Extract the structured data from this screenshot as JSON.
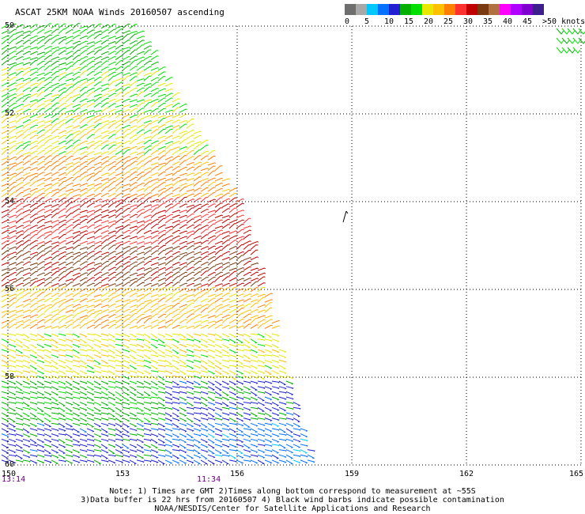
{
  "title": "ASCAT 25KM NOAA Winds 20160507 ascending",
  "legend": {
    "colors": [
      "#6e6e6e",
      "#a8a8a8",
      "#00c8ff",
      "#0070ff",
      "#2020d0",
      "#00b000",
      "#00e000",
      "#e8e800",
      "#ffc000",
      "#ff8000",
      "#ff3030",
      "#c00000",
      "#7a3a10",
      "#b07040",
      "#ff00ff",
      "#b000ff",
      "#8000d0",
      "#3c1e8c"
    ],
    "labels": [
      "0",
      "5",
      "10",
      "15",
      "20",
      "25",
      "30",
      "35",
      "40",
      "45",
      ">50 knots"
    ]
  },
  "lat_labels": [
    "50",
    "52",
    "54",
    "56",
    "58",
    "60"
  ],
  "lon_labels": [
    "150",
    "153",
    "156",
    "159",
    "162",
    "165"
  ],
  "time_labels": [
    "13:14",
    "11:34"
  ],
  "notes": [
    "Note: 1) Times are GMT 2)Times along bottom correspond to measurement at ~55S",
    "3)Data buffer is 22 hrs from 20160507 4) Black wind barbs indicate possible contamination",
    "NOAA/NESDIS/Center for Satellite Applications and Research"
  ],
  "map_data": {
    "lon_range": [
      150,
      165
    ],
    "lat_range": [
      50,
      60
    ],
    "lat_increases_downward": true,
    "grid": "dotted",
    "swath_right_edge": [
      [
        50,
        153.3
      ],
      [
        51,
        154
      ],
      [
        52,
        154.6
      ],
      [
        53,
        155.3
      ],
      [
        54,
        156
      ],
      [
        55,
        156.4
      ],
      [
        56,
        156.7
      ],
      [
        57,
        157
      ],
      [
        58,
        157.3
      ],
      [
        59,
        157.6
      ],
      [
        60,
        158
      ]
    ],
    "speed_bands_knots": [
      {
        "lat_from": 50.0,
        "lat_to": 51.0,
        "speed": 17
      },
      {
        "lat_from": 51.0,
        "lat_to": 52.0,
        "speed": 19
      },
      {
        "lat_from": 52.0,
        "lat_to": 53.0,
        "speed": 21
      },
      {
        "lat_from": 53.0,
        "lat_to": 54.0,
        "speed": 26
      },
      {
        "lat_from": 54.0,
        "lat_to": 55.0,
        "speed": 31
      },
      {
        "lat_from": 55.0,
        "lat_to": 56.0,
        "speed": 34
      },
      {
        "lat_from": 56.0,
        "lat_to": 57.0,
        "speed": 24
      },
      {
        "lat_from": 57.0,
        "lat_to": 58.0,
        "speed": 21
      },
      {
        "lat_from": 58.0,
        "lat_to": 59.0,
        "speed": 16
      },
      {
        "lat_from": 59.0,
        "lat_to": 60.0,
        "speed": 13
      }
    ]
  }
}
